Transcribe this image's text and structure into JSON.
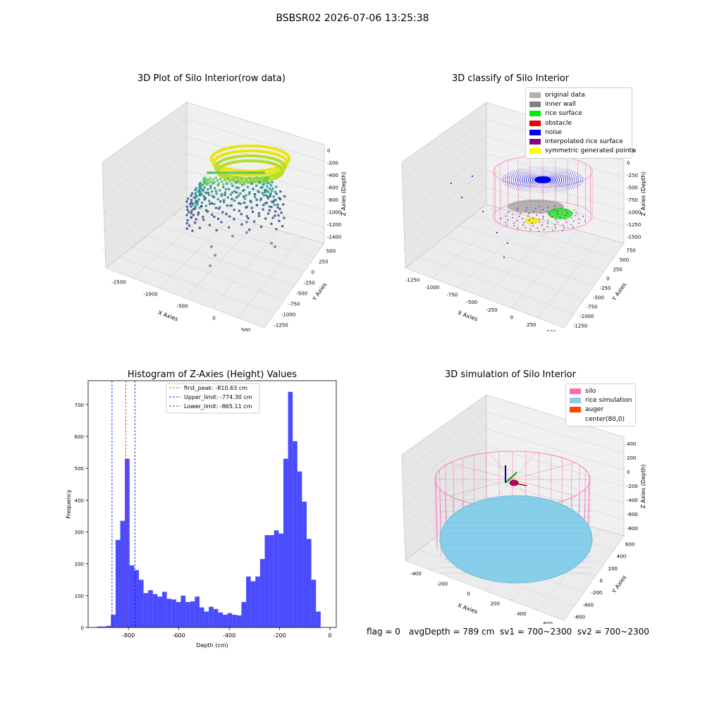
{
  "suptitle": "BSBSR02 2026-07-06 13:25:38",
  "panels": {
    "raw": {
      "title": "3D Plot of Silo Interior(row data)",
      "xlabel": "X Axies",
      "ylabel": "Y Axies",
      "zlabel": "Z Axies (Depth)",
      "xticks": [
        "-1500",
        "-1000",
        "-500",
        "0",
        "500"
      ],
      "yticks": [
        "500",
        "250",
        "0",
        "-250",
        "-500",
        "-750",
        "-1000",
        "-1250"
      ],
      "zticks": [
        "0",
        "-200",
        "-400",
        "-600",
        "-800",
        "-1000",
        "-1200",
        "-1400"
      ]
    },
    "classify": {
      "title": "3D classify of Silo Interior",
      "xlabel": "X Axies",
      "ylabel": "Y Axies",
      "zlabel": "Z Axies (Depth)",
      "xticks": [
        "-1250",
        "-1000",
        "-750",
        "-500",
        "-250",
        "0",
        "250",
        "500"
      ],
      "yticks": [
        "750",
        "500",
        "250",
        "0",
        "-250",
        "-500",
        "-750",
        "-1000",
        "-1250"
      ],
      "zticks": [
        "250",
        "0",
        "-250",
        "-500",
        "-750",
        "-1000",
        "-1250",
        "-1500"
      ],
      "legend": [
        {
          "label": "original data",
          "color": "#b0b0b0"
        },
        {
          "label": "inner wall",
          "color": "#808080"
        },
        {
          "label": "rice surface",
          "color": "#00ee00"
        },
        {
          "label": "obstacle",
          "color": "#ee0000"
        },
        {
          "label": "noise",
          "color": "#0000ee"
        },
        {
          "label": "interpolated rice surface",
          "color": "#880088"
        },
        {
          "label": "symmetric generated points",
          "color": "#ffff00"
        }
      ]
    },
    "simulation": {
      "title": "3D simulation of Silo Interior",
      "xlabel": "X Axies",
      "ylabel": "Y Axies",
      "zlabel": "Z Axies (Depth)",
      "xticks": [
        "-400",
        "-200",
        "0",
        "200",
        "400",
        "600"
      ],
      "yticks": [
        "600",
        "400",
        "200",
        "0",
        "-200",
        "-400",
        "-600"
      ],
      "zticks": [
        "400",
        "200",
        "0",
        "-200",
        "-400",
        "-600",
        "-800"
      ],
      "legend": [
        {
          "label": "silo",
          "color": "#ff69b4"
        },
        {
          "label": "rice simulation",
          "color": "#87ceeb"
        },
        {
          "label": "auger",
          "color": "#ff4500"
        },
        {
          "label": "center(80,0)",
          "color": "#ffffff"
        }
      ]
    }
  },
  "chart_data": {
    "type": "bar",
    "title": "Histogram of Z-Axies (Height) Values",
    "xlabel": "Depth (cm)",
    "ylabel": "Frequency",
    "xlim": [
      -960,
      25
    ],
    "ylim": [
      0,
      775
    ],
    "xticks": [
      -800,
      -600,
      -400,
      -200,
      0
    ],
    "yticks": [
      0,
      100,
      200,
      300,
      400,
      500,
      600,
      700
    ],
    "bin_start": -925,
    "bin_width": 18.5,
    "counts": [
      3,
      3,
      5,
      40,
      275,
      335,
      530,
      195,
      180,
      150,
      108,
      117,
      105,
      97,
      112,
      90,
      88,
      80,
      100,
      80,
      82,
      97,
      63,
      50,
      65,
      58,
      47,
      40,
      45,
      40,
      38,
      80,
      160,
      145,
      160,
      215,
      290,
      290,
      305,
      295,
      530,
      740,
      585,
      490,
      395,
      278,
      150,
      50
    ],
    "bar_color": "#0000ff",
    "vlines": [
      {
        "label": "first_peak: -810.63 cm",
        "x": -810.63,
        "color": "#ff0000"
      },
      {
        "label": "Upper_limit: -774.30 cm",
        "x": -774.3,
        "color": "#0000ff"
      },
      {
        "label": "Lower_limit: -865.11 cm",
        "x": -865.11,
        "color": "#0000ff"
      }
    ],
    "legend_position": "upper center"
  },
  "footer": {
    "flag": "flag = 0",
    "stats": "avgDepth = 789 cm  sv1 = 700~2300  sv2 = 700~2300"
  }
}
